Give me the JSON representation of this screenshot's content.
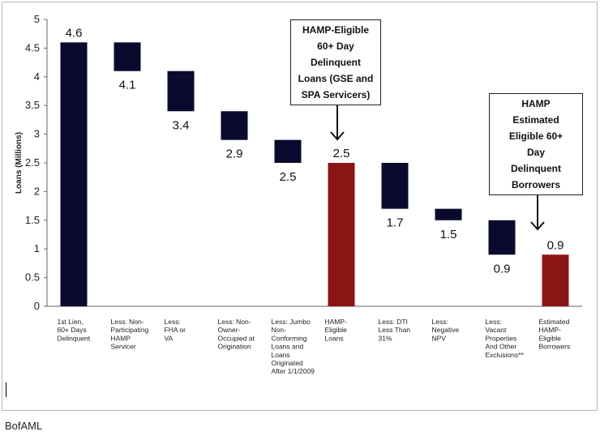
{
  "chart_data": {
    "type": "bar",
    "subtype": "waterfall",
    "ylabel": "Loans (Millions)",
    "ylim": [
      0,
      5
    ],
    "yticks": [
      "0",
      "0.5",
      "1",
      "1.5",
      "2",
      "2.5",
      "3",
      "3.5",
      "4",
      "4.5",
      "5"
    ],
    "grid": false,
    "colors": {
      "dark": "#0a0a2e",
      "red": "#8b1414"
    },
    "bars": [
      {
        "label": "1st Lien, 60+ Days Delinquent",
        "lines": [
          "1st Lien,",
          "60+ Days",
          "Delinquent"
        ],
        "bottom": 0,
        "top": 4.6,
        "value_label": "4.6",
        "color": "dark",
        "label_pos": "above"
      },
      {
        "label": "Less: Non-Participating HAMP Servicer",
        "lines": [
          "Less: Non-",
          "Participating",
          "HAMP",
          "Servicer"
        ],
        "bottom": 4.1,
        "top": 4.6,
        "value_label": "4.1",
        "color": "dark",
        "label_pos": "below"
      },
      {
        "label": "Less: FHA or VA",
        "lines": [
          "Less:",
          "FHA or",
          "VA"
        ],
        "bottom": 3.4,
        "top": 4.1,
        "value_label": "3.4",
        "color": "dark",
        "label_pos": "below"
      },
      {
        "label": "Less: Non-Owner-Occupied at Origination",
        "lines": [
          "Less: Non-",
          "Owner-",
          "Occupied at",
          "Origination"
        ],
        "bottom": 2.9,
        "top": 3.4,
        "value_label": "2.9",
        "color": "dark",
        "label_pos": "below"
      },
      {
        "label": "Less: Jumbo Non-Conforming Loans and Loans Originated After 1/1/2009",
        "lines": [
          "Less: Jumbo",
          "Non-",
          "Conforming",
          "Loans and",
          "Loans",
          "Originated",
          "After 1/1/2009"
        ],
        "bottom": 2.5,
        "top": 2.9,
        "value_label": "2.5",
        "color": "dark",
        "label_pos": "below"
      },
      {
        "label": "HAMP-Eligible Loans",
        "lines": [
          "HAMP-",
          "Eligible",
          "Loans"
        ],
        "bottom": 0,
        "top": 2.5,
        "value_label": "2.5",
        "color": "red",
        "label_pos": "above"
      },
      {
        "label": "Less: DTI Less Than 31%",
        "lines": [
          "Less: DTI",
          "Less Than",
          "31%"
        ],
        "bottom": 1.7,
        "top": 2.5,
        "value_label": "1.7",
        "color": "dark",
        "label_pos": "below"
      },
      {
        "label": "Less: Negative NPV",
        "lines": [
          "Less:",
          "Negative",
          "NPV"
        ],
        "bottom": 1.5,
        "top": 1.7,
        "value_label": "1.5",
        "color": "dark",
        "label_pos": "below"
      },
      {
        "label": "Less: Vacant Properties And Other Exclusions**",
        "lines": [
          "Less:",
          "Vacant",
          "Properties",
          "And Other",
          "Exclusions**"
        ],
        "bottom": 0.9,
        "top": 1.5,
        "value_label": "0.9",
        "color": "dark",
        "label_pos": "below"
      },
      {
        "label": "Estimated HAMP-Eligible Borrowers",
        "lines": [
          "Estimated",
          "HAMP-",
          "Eligible",
          "Borrowers"
        ],
        "bottom": 0,
        "top": 0.9,
        "value_label": "0.9",
        "color": "red",
        "label_pos": "above"
      }
    ],
    "annotations": [
      {
        "target": "HAMP-Eligible Loans",
        "lines": [
          "HAMP-Eligible",
          "60+ Day",
          "Delinquent",
          "Loans (GSE and",
          "SPA Servicers)"
        ]
      },
      {
        "target": "Estimated HAMP-Eligible Borrowers",
        "lines": [
          "HAMP",
          "Estimated",
          "Eligible 60+",
          "Day",
          "Delinquent",
          "Borrowers"
        ]
      }
    ]
  },
  "footer": "BofAML"
}
